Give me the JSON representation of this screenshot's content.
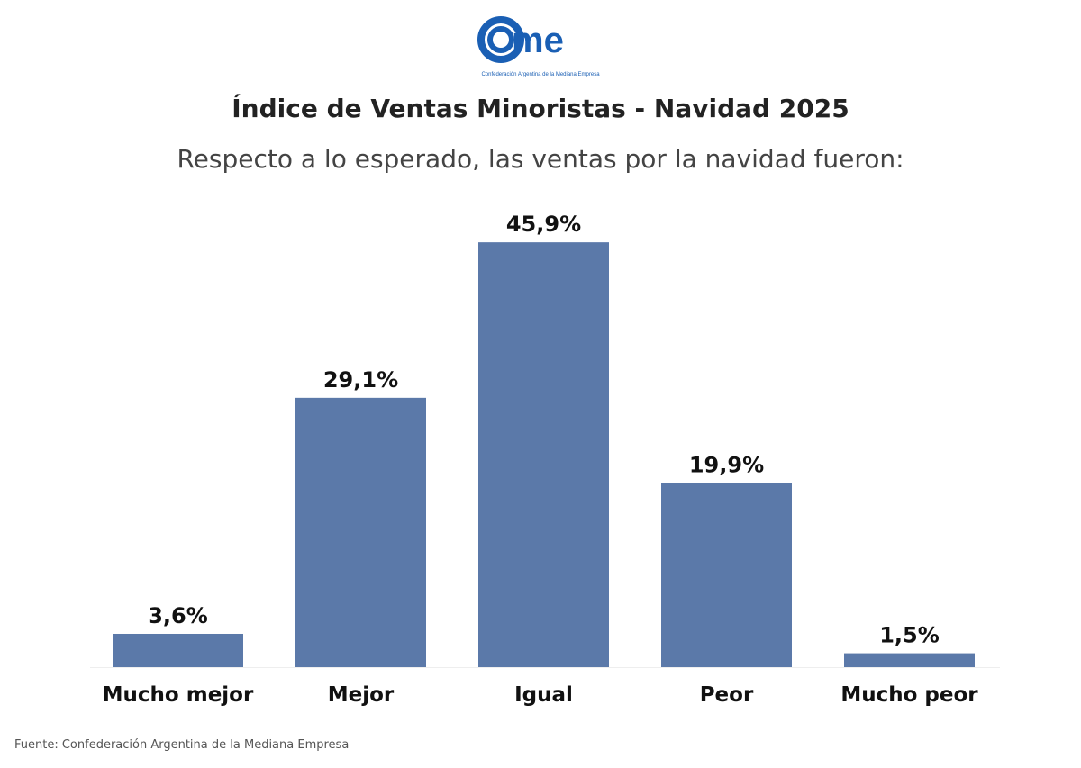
{
  "logo": {
    "text": "cme",
    "caption": "Confederación Argentina de la Mediana Empresa",
    "color": "#1a5fb4"
  },
  "chart_data": {
    "type": "bar",
    "title": "Índice de Ventas Minoristas - Navidad 2025",
    "subtitle": "Respecto a lo esperado, las ventas por la navidad fueron:",
    "categories": [
      "Mucho mejor",
      "Mejor",
      "Igual",
      "Peor",
      "Mucho peor"
    ],
    "values": [
      3.6,
      29.1,
      45.9,
      19.9,
      1.5
    ],
    "data_labels": [
      "3,6%",
      "29,1%",
      "45,9%",
      "19,9%",
      "1,5%"
    ],
    "unit": "%",
    "grid": false,
    "bar_color": "#5b79a9"
  },
  "source": "Fuente: Confederación Argentina de la Mediana Empresa"
}
